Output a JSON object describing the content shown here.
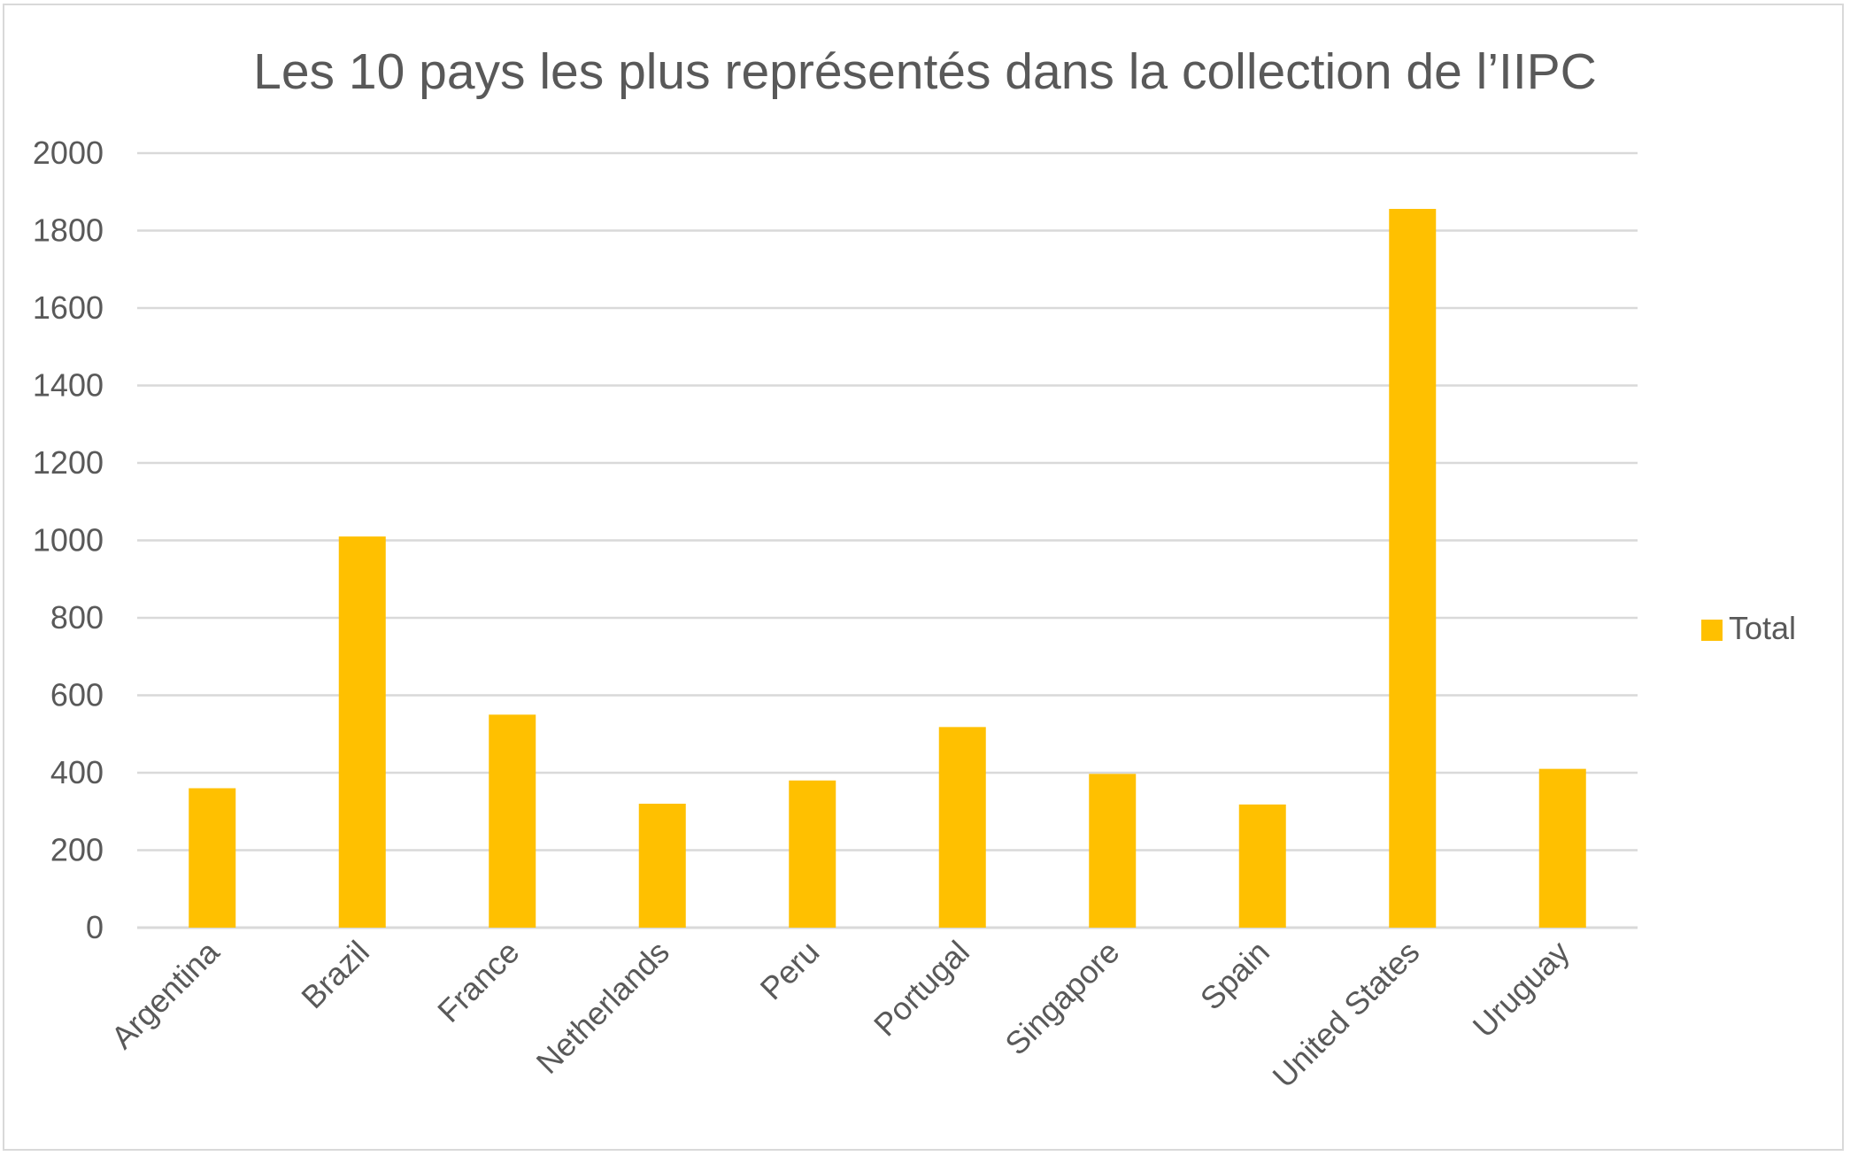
{
  "chart_data": {
    "type": "bar",
    "title": "Les 10 pays les plus représentés dans la collection de l’IIPC",
    "xlabel": "",
    "ylabel": "",
    "categories": [
      "Argentina",
      "Brazil",
      "France",
      "Netherlands",
      "Peru",
      "Portugal",
      "Singapore",
      "Spain",
      "United States",
      "Uruguay"
    ],
    "series": [
      {
        "name": "Total",
        "color": "#ffc000",
        "values": [
          360,
          1010,
          550,
          320,
          380,
          518,
          397,
          318,
          1856,
          410
        ]
      }
    ],
    "ylim": [
      0,
      2000
    ],
    "yticks": [
      0,
      200,
      400,
      600,
      800,
      1000,
      1200,
      1400,
      1600,
      1800,
      2000
    ],
    "grid": true,
    "legend_position": "right",
    "colors": {
      "bar": "#ffc000",
      "grid": "#d9d9d9",
      "text": "#595959",
      "border": "#d9d9d9"
    }
  }
}
